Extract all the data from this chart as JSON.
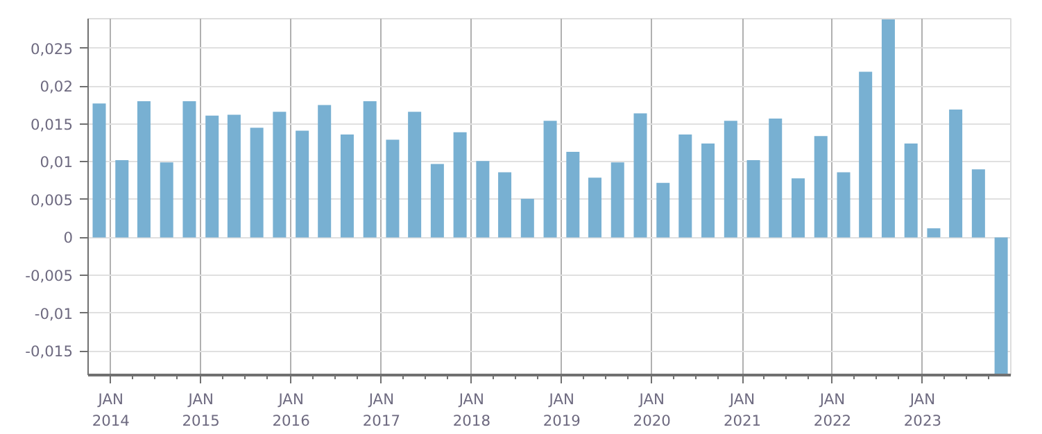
{
  "chart_data": {
    "type": "bar",
    "x": [
      "2013-11-15",
      "2014-02-15",
      "2014-05-15",
      "2014-08-15",
      "2014-11-15",
      "2015-02-15",
      "2015-05-15",
      "2015-08-15",
      "2015-11-15",
      "2016-02-15",
      "2016-05-15",
      "2016-08-15",
      "2016-11-15",
      "2017-02-15",
      "2017-05-15",
      "2017-08-15",
      "2017-11-15",
      "2018-02-15",
      "2018-05-15",
      "2018-08-15",
      "2018-11-15",
      "2019-02-15",
      "2019-05-15",
      "2019-08-15",
      "2019-11-15",
      "2020-02-15",
      "2020-05-15",
      "2020-08-15",
      "2020-11-15",
      "2021-02-15",
      "2021-05-15",
      "2021-08-15",
      "2021-11-15",
      "2022-02-15",
      "2022-05-15",
      "2022-08-15",
      "2022-11-15",
      "2023-02-15",
      "2023-05-15",
      "2023-08-15",
      "2023-11-15"
    ],
    "values": [
      0.0177,
      0.0102,
      0.018,
      0.0099,
      0.018,
      0.0161,
      0.0162,
      0.0145,
      0.0166,
      0.0141,
      0.0175,
      0.0136,
      0.018,
      0.0129,
      0.0166,
      0.0097,
      0.0139,
      0.0101,
      0.0086,
      0.0051,
      0.0154,
      0.0113,
      0.0079,
      0.0099,
      0.0164,
      0.0072,
      0.0136,
      0.0124,
      0.0154,
      0.0102,
      0.0157,
      0.0078,
      0.0134,
      0.0086,
      0.0219,
      0.0288,
      0.0124,
      0.0012,
      0.0169,
      0.009,
      -0.0182
    ],
    "color": "#78b0d2",
    "xlim": [
      "2013-10-01",
      "2023-12-24"
    ],
    "xticks": [
      {
        "value": "2014-01-01",
        "label": "JAN\n2014"
      },
      {
        "value": "2015-01-01",
        "label": "JAN\n2015"
      },
      {
        "value": "2016-01-01",
        "label": "JAN\n2016"
      },
      {
        "value": "2017-01-01",
        "label": "JAN\n2017"
      },
      {
        "value": "2018-01-01",
        "label": "JAN\n2018"
      },
      {
        "value": "2019-01-01",
        "label": "JAN\n2019"
      },
      {
        "value": "2020-01-01",
        "label": "JAN\n2020"
      },
      {
        "value": "2021-01-01",
        "label": "JAN\n2021"
      },
      {
        "value": "2022-01-01",
        "label": "JAN\n2022"
      },
      {
        "value": "2023-01-01",
        "label": "JAN\n2023"
      }
    ],
    "ylim": [
      -0.0182,
      0.0289
    ],
    "yticks": [
      {
        "value": -0.015,
        "label": "-0,015"
      },
      {
        "value": -0.01,
        "label": "-0,01"
      },
      {
        "value": -0.005,
        "label": "-0,005"
      },
      {
        "value": 0,
        "label": "0"
      },
      {
        "value": 0.005,
        "label": "0,005"
      },
      {
        "value": 0.01,
        "label": "0,01"
      },
      {
        "value": 0.015,
        "label": "0,015"
      },
      {
        "value": 0.02,
        "label": "0,02"
      },
      {
        "value": 0.025,
        "label": "0,025"
      }
    ],
    "grid": true
  }
}
